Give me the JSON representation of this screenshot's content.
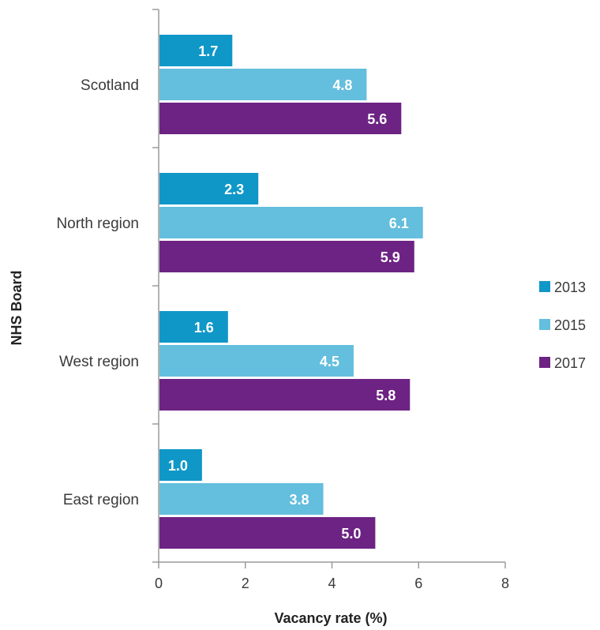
{
  "chart_data": {
    "type": "bar",
    "orientation": "horizontal",
    "title": "",
    "xlabel": "Vacancy rate (%)",
    "ylabel": "NHS Board",
    "categories": [
      "Scotland",
      "North region",
      "West region",
      "East region"
    ],
    "series": [
      {
        "name": "2013",
        "color": "#0f97c7",
        "values": [
          1.7,
          2.3,
          1.6,
          1.0
        ]
      },
      {
        "name": "2015",
        "color": "#64bedd",
        "values": [
          4.8,
          6.1,
          4.5,
          3.8
        ]
      },
      {
        "name": "2017",
        "color": "#6d2383",
        "values": [
          5.6,
          5.9,
          5.8,
          5.0
        ]
      }
    ],
    "xlim": [
      0,
      8
    ],
    "x_ticks": [
      "0",
      "2",
      "4",
      "6",
      "8"
    ],
    "grid": false,
    "legend_position": "right",
    "data_labels": true
  }
}
